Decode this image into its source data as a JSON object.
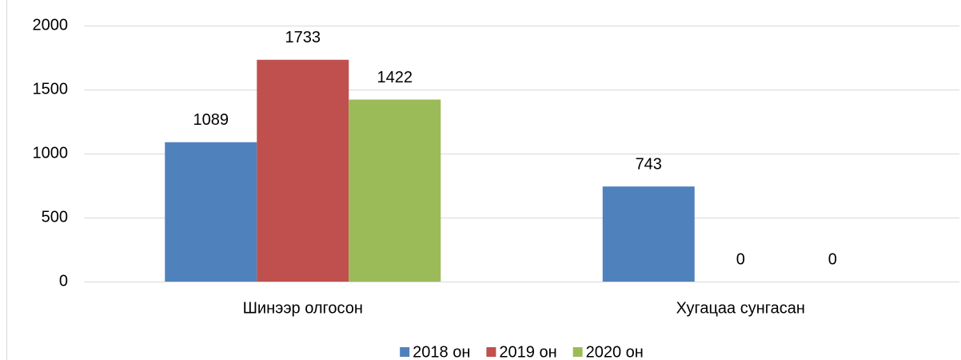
{
  "chart_data": {
    "type": "bar",
    "categories": [
      "Шинээр олгосон",
      "Хугацаа сунгасан"
    ],
    "series": [
      {
        "name": "2018 он",
        "color": "#4f81bd",
        "values": [
          1089,
          743
        ]
      },
      {
        "name": "2019 он",
        "color": "#c0504d",
        "values": [
          1733,
          0
        ]
      },
      {
        "name": "2020 он",
        "color": "#9bbb59",
        "values": [
          1422,
          0
        ]
      }
    ],
    "ylim": [
      0,
      2000
    ],
    "yticks": [
      0,
      500,
      1000,
      1500,
      2000
    ],
    "grid": true,
    "legend": "bottom"
  }
}
